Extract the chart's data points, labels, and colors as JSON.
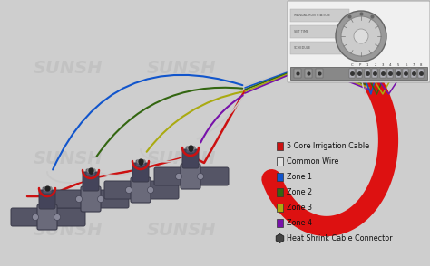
{
  "bg_color": "#cecece",
  "legend_items": [
    {
      "label": "5 Core Irrigation Cable",
      "color": "#cc1111",
      "marker": "square"
    },
    {
      "label": "Common Wire",
      "color": "#d8d8d8",
      "marker": "square_outline"
    },
    {
      "label": "Zone 1",
      "color": "#1155cc",
      "marker": "square"
    },
    {
      "label": "Zone 2",
      "color": "#336611",
      "marker": "square"
    },
    {
      "label": "Zone 3",
      "color": "#aaaa11",
      "marker": "square"
    },
    {
      "label": "Zone 4",
      "color": "#7711aa",
      "marker": "square"
    },
    {
      "label": "Heat Shrink Cable Connector",
      "color": "#444444",
      "marker": "hexagon"
    }
  ],
  "wire_colors": {
    "red": "#cc1111",
    "white": "#c8c8c8",
    "blue": "#1155cc",
    "green": "#336611",
    "yellow": "#aaaa11",
    "purple": "#7711aa"
  },
  "red_cable_color": "#dd1111",
  "watermark_color": "#bbbbbb",
  "valve_dark": "#3a3a4a",
  "valve_mid": "#555566",
  "valve_light": "#6a6a7a"
}
